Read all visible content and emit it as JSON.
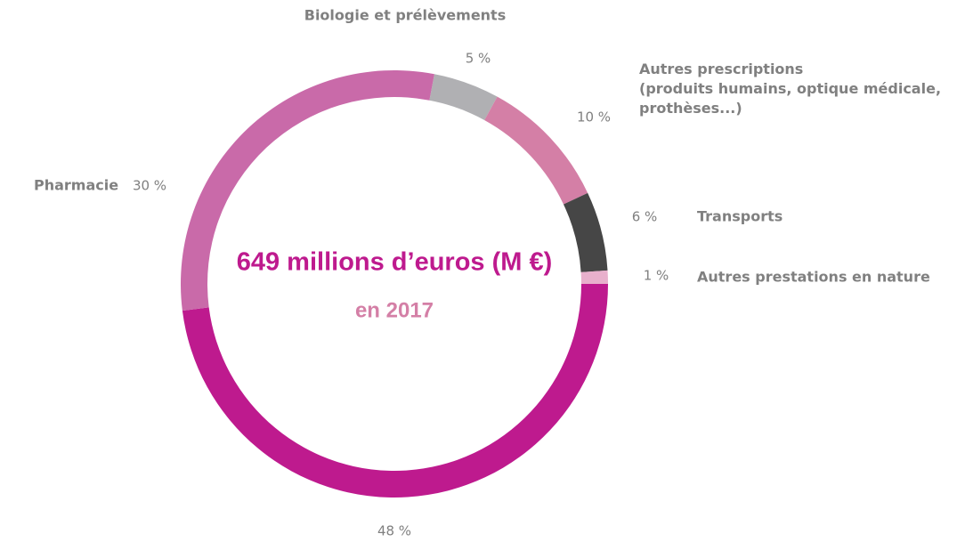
{
  "chart_data": {
    "type": "donut",
    "categories": [
      "Biologie et prélèvements",
      "Autres prescriptions\n(produits humains, optique médicale,\nprothèses...)",
      "Transports",
      "Autres prestations en nature",
      null,
      "Pharmacie"
    ],
    "values": [
      5,
      10,
      6,
      1,
      48,
      30
    ],
    "value_labels": [
      "5 %",
      "10 %",
      "6 %",
      "1 %",
      "48 %",
      "30 %"
    ],
    "colors": [
      "#b0b0b3",
      "#d47fa6",
      "#464646",
      "#e8b0cc",
      "#be1a8e",
      "#c96aa9"
    ],
    "annotations": [
      "649 millions d’euros (M €)",
      "en 2017"
    ]
  }
}
